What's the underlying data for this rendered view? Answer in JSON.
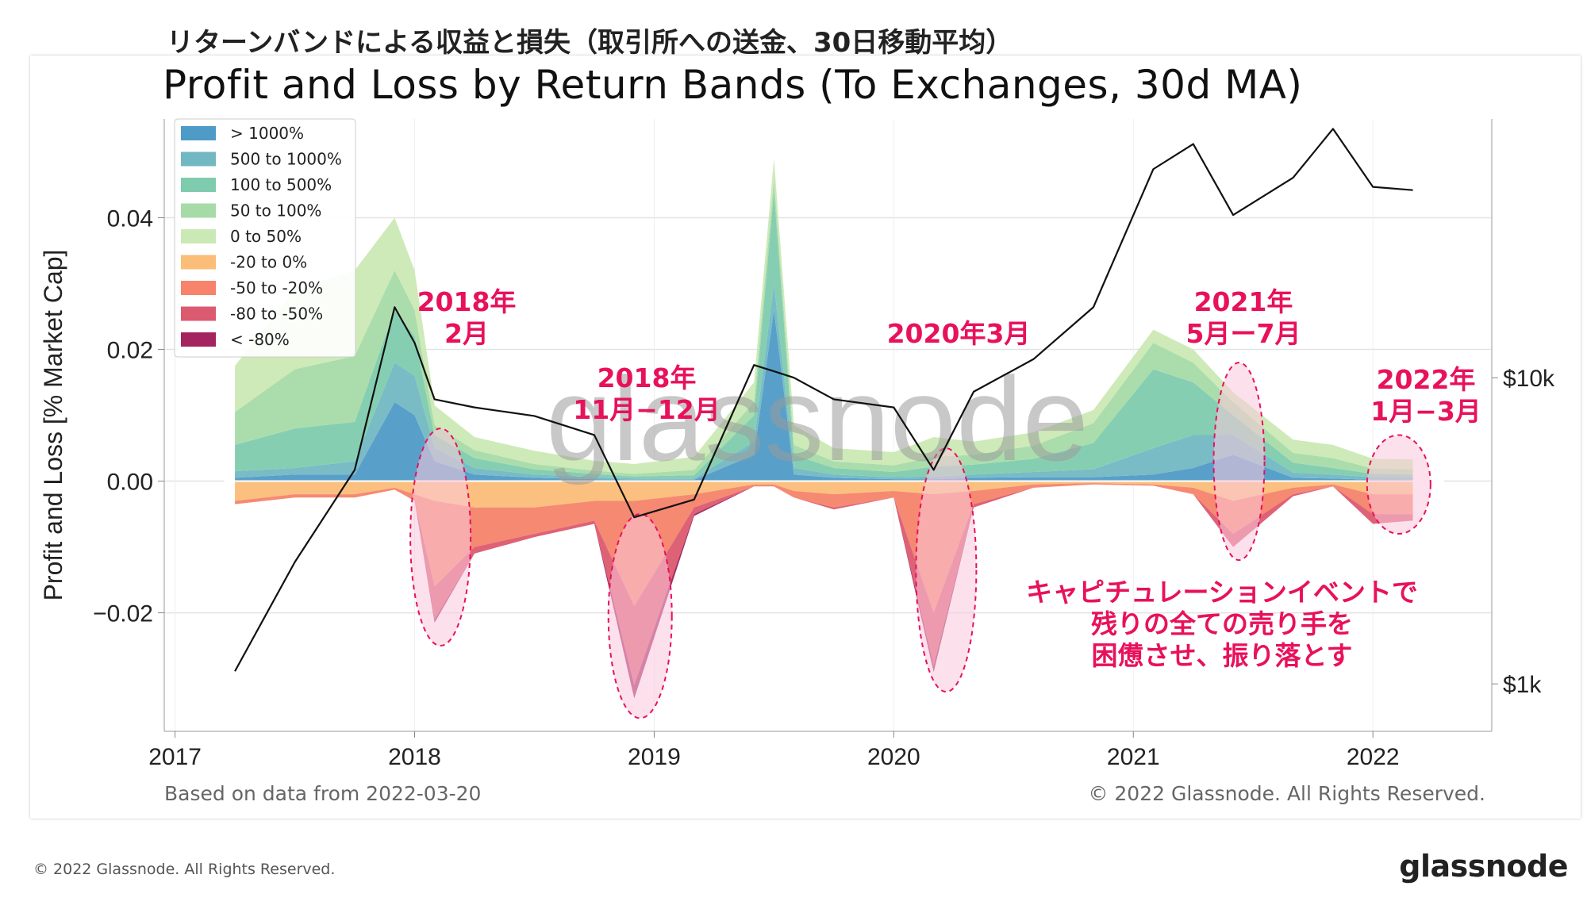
{
  "titles": {
    "japanese": "リターンバンドによる収益と損失（取引所への送金、30日移動平均）",
    "english": "Profit and Loss by Return Bands (To Exchanges, 30d MA)"
  },
  "footer": {
    "based_on": "Based on data from 2022-03-20",
    "chart_copyright": "© 2022 Glassnode. All Rights Reserved.",
    "page_copyright": "© 2022 Glassnode. All Rights Reserved.",
    "brand": "glassnode",
    "watermark": "glassnode"
  },
  "annotations": [
    {
      "id": "feb-2018",
      "lines": [
        "2018年",
        "2月"
      ]
    },
    {
      "id": "nov-dec-2018",
      "lines": [
        "2018年",
        "11月−12月"
      ]
    },
    {
      "id": "mar-2020",
      "lines": [
        "2020年3月"
      ]
    },
    {
      "id": "may-jul-2021",
      "lines": [
        "2021年",
        "5月ー7月"
      ]
    },
    {
      "id": "jan-mar-2022",
      "lines": [
        "2022年",
        "1月−3月"
      ]
    },
    {
      "id": "capitulation-note",
      "lines": [
        "キャピチュレーションイベントで",
        "残りの全ての売り手を",
        "困憊させ、振り落とす"
      ]
    }
  ],
  "colors": {
    "accent": "#e8115b",
    "highlight_fill": "#f9c9dc",
    "price_line": "#111111"
  },
  "chart_data": {
    "type": "area",
    "x": [
      "2017-04",
      "2017-07",
      "2017-10",
      "2017-12",
      "2018-01",
      "2018-02",
      "2018-04",
      "2018-07",
      "2018-10",
      "2018-12",
      "2019-03",
      "2019-06",
      "2019-07",
      "2019-08",
      "2019-10",
      "2020-01",
      "2020-03",
      "2020-05",
      "2020-08",
      "2020-11",
      "2021-02",
      "2021-04",
      "2021-06",
      "2021-09",
      "2021-11",
      "2022-01",
      "2022-03"
    ],
    "series": [
      {
        "name": "> 1000%",
        "color": "#4f9bc7",
        "values": [
          0.0005,
          0.001,
          0.001,
          0.012,
          0.01,
          0.003,
          0.001,
          0.0005,
          0.0003,
          0.0002,
          0.0002,
          0.004,
          0.026,
          0.001,
          0.0005,
          0.0003,
          0.0003,
          0.0005,
          0.0006,
          0.0006,
          0.001,
          0.002,
          0.004,
          0.0005,
          0.0004,
          0.0002,
          0.0002
        ]
      },
      {
        "name": "500 to 1000%",
        "color": "#72b8c3",
        "values": [
          0.001,
          0.001,
          0.002,
          0.006,
          0.006,
          0.002,
          0.001,
          0.0005,
          0.0003,
          0.0002,
          0.0002,
          0.002,
          0.004,
          0.001,
          0.0005,
          0.0003,
          0.0004,
          0.0005,
          0.0008,
          0.0012,
          0.004,
          0.005,
          0.003,
          0.0008,
          0.0006,
          0.0004,
          0.0003
        ]
      },
      {
        "name": "100 to 500%",
        "color": "#7fcbae",
        "values": [
          0.004,
          0.006,
          0.006,
          0.008,
          0.006,
          0.002,
          0.0015,
          0.0008,
          0.0005,
          0.0003,
          0.0005,
          0.004,
          0.014,
          0.002,
          0.001,
          0.0008,
          0.0015,
          0.0015,
          0.002,
          0.004,
          0.012,
          0.008,
          0.003,
          0.0015,
          0.001,
          0.0005,
          0.0005
        ]
      },
      {
        "name": "50 to 100%",
        "color": "#a6dba8",
        "values": [
          0.005,
          0.009,
          0.01,
          0.006,
          0.004,
          0.0015,
          0.0012,
          0.0008,
          0.0005,
          0.0004,
          0.0008,
          0.002,
          0.002,
          0.0015,
          0.001,
          0.001,
          0.0015,
          0.0015,
          0.002,
          0.003,
          0.004,
          0.003,
          0.002,
          0.0015,
          0.0015,
          0.0008,
          0.0008
        ]
      },
      {
        "name": "0 to 50%",
        "color": "#cbe9b4",
        "values": [
          0.007,
          0.012,
          0.013,
          0.008,
          0.006,
          0.003,
          0.002,
          0.002,
          0.0015,
          0.0015,
          0.002,
          0.003,
          0.003,
          0.003,
          0.002,
          0.002,
          0.003,
          0.002,
          0.002,
          0.002,
          0.002,
          0.002,
          0.0015,
          0.002,
          0.002,
          0.0015,
          0.0015
        ]
      },
      {
        "name": "-20 to 0%",
        "color": "#fbbd78",
        "values": [
          -0.003,
          -0.002,
          -0.002,
          -0.001,
          -0.002,
          -0.003,
          -0.004,
          -0.004,
          -0.003,
          -0.003,
          -0.002,
          -0.0005,
          -0.0005,
          -0.0015,
          -0.002,
          -0.0015,
          -0.002,
          -0.0015,
          -0.0005,
          -0.0003,
          -0.0005,
          -0.001,
          -0.003,
          -0.001,
          -0.0005,
          -0.002,
          -0.002
        ]
      },
      {
        "name": "-50 to -20%",
        "color": "#f6836a",
        "values": [
          -0.0005,
          -0.0005,
          -0.0005,
          -0.0003,
          -0.001,
          -0.013,
          -0.006,
          -0.004,
          -0.003,
          -0.016,
          -0.002,
          -0.0003,
          -0.0003,
          -0.001,
          -0.002,
          -0.001,
          -0.018,
          -0.002,
          -0.0005,
          -0.0002,
          -0.0002,
          -0.001,
          -0.005,
          -0.001,
          -0.0003,
          -0.003,
          -0.003
        ]
      },
      {
        "name": "-80 to -50%",
        "color": "#dc5a6f",
        "values": [
          0,
          0,
          0,
          0,
          0,
          -0.005,
          -0.001,
          -0.0005,
          -0.0005,
          -0.012,
          -0.001,
          0,
          0,
          0,
          -0.0003,
          0,
          -0.008,
          -0.0005,
          0,
          0,
          0,
          0,
          -0.002,
          -0.0003,
          0,
          -0.0015,
          -0.001
        ]
      },
      {
        "name": "< -80%",
        "color": "#a3245e",
        "values": [
          0,
          0,
          0,
          0,
          0,
          -0.0005,
          0,
          0,
          0,
          -0.002,
          -0.0003,
          0,
          0,
          0,
          0,
          0,
          -0.001,
          0,
          0,
          0,
          0,
          0,
          0,
          0,
          0,
          0,
          0
        ]
      }
    ],
    "price_series": {
      "name": "BTC price (log scale, right axis)",
      "x": [
        "2017-04",
        "2017-07",
        "2017-10",
        "2017-12",
        "2018-01",
        "2018-02",
        "2018-04",
        "2018-07",
        "2018-10",
        "2018-12",
        "2019-03",
        "2019-06",
        "2019-07",
        "2019-08",
        "2019-10",
        "2020-01",
        "2020-03",
        "2020-05",
        "2020-08",
        "2020-11",
        "2021-02",
        "2021-04",
        "2021-06",
        "2021-09",
        "2021-11",
        "2022-01",
        "2022-03"
      ],
      "values": [
        1100,
        2500,
        5000,
        17000,
        13000,
        8500,
        8000,
        7500,
        6500,
        3500,
        4000,
        11000,
        10500,
        10000,
        8500,
        8000,
        5000,
        9000,
        11500,
        17000,
        48000,
        58000,
        34000,
        45000,
        65000,
        42000,
        41000
      ]
    },
    "xlabel": "",
    "ylabel": "Profit and Loss [% Market Cap]",
    "ylim": [
      -0.038,
      0.055
    ],
    "yticks": [
      -0.02,
      0.0,
      0.02,
      0.04
    ],
    "ytick_labels": [
      "−0.02",
      "0.00",
      "0.02",
      "0.04"
    ],
    "xlim": [
      "2016-12-15",
      "2022-06-30"
    ],
    "xticks": [
      "2017",
      "2018",
      "2019",
      "2020",
      "2021",
      "2022"
    ],
    "y2_scale": "log",
    "y2lim": [
      700,
      70000
    ],
    "y2ticks": [
      1000,
      10000
    ],
    "y2tick_labels": [
      "$1k",
      "$10k"
    ],
    "grid": true,
    "legend_position": "top-left"
  }
}
